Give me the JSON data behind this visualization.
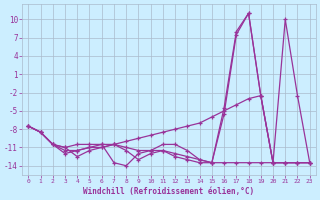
{
  "xlabel": "Windchill (Refroidissement éolien,°C)",
  "x": [
    0,
    1,
    2,
    3,
    4,
    5,
    6,
    7,
    8,
    9,
    10,
    11,
    12,
    13,
    14,
    15,
    16,
    17,
    18,
    19,
    20,
    21,
    22,
    23
  ],
  "lines": [
    [
      -7.5,
      -8.5,
      -10.5,
      -11.0,
      -10.5,
      -10.5,
      -10.5,
      -10.5,
      -10.0,
      -9.5,
      -9.0,
      -8.5,
      -8.0,
      -7.5,
      -7.0,
      -6.0,
      -5.0,
      -4.0,
      -3.0,
      -2.5,
      -13.5,
      -13.5,
      -13.5,
      -13.5
    ],
    [
      -7.5,
      -8.5,
      -10.5,
      -11.5,
      -11.5,
      -11.0,
      -11.0,
      -10.5,
      -11.0,
      -11.5,
      -11.5,
      -10.5,
      -10.5,
      -11.5,
      -13.0,
      -13.5,
      -5.5,
      7.5,
      11.0,
      -2.5,
      -13.5,
      -13.5,
      -13.5,
      -13.5
    ],
    [
      -7.5,
      -8.5,
      -10.5,
      -12.0,
      -11.5,
      -11.0,
      -10.5,
      -13.5,
      -14.0,
      -12.0,
      -11.5,
      -11.5,
      -12.0,
      -12.5,
      -13.0,
      -13.5,
      -4.5,
      8.0,
      11.0,
      -2.5,
      -13.5,
      10.0,
      -2.5,
      -13.5
    ],
    [
      -7.5,
      -8.5,
      -10.5,
      -11.0,
      -12.5,
      -11.5,
      -11.0,
      -10.5,
      -11.5,
      -13.0,
      -12.0,
      -11.5,
      -12.5,
      -13.0,
      -13.5,
      -13.5,
      -13.5,
      -13.5,
      -13.5,
      -13.5,
      -13.5,
      -13.5,
      -13.5,
      -13.5
    ]
  ],
  "line_color": "#993399",
  "bg_color": "#cceeff",
  "grid_color": "#aabbcc",
  "ylim": [
    -15.5,
    12.5
  ],
  "yticks": [
    -14,
    -11,
    -8,
    -5,
    -2,
    1,
    4,
    7,
    10
  ],
  "xticks": [
    0,
    1,
    2,
    3,
    4,
    5,
    6,
    7,
    8,
    9,
    10,
    11,
    12,
    13,
    14,
    15,
    16,
    17,
    18,
    19,
    20,
    21,
    22,
    23
  ]
}
